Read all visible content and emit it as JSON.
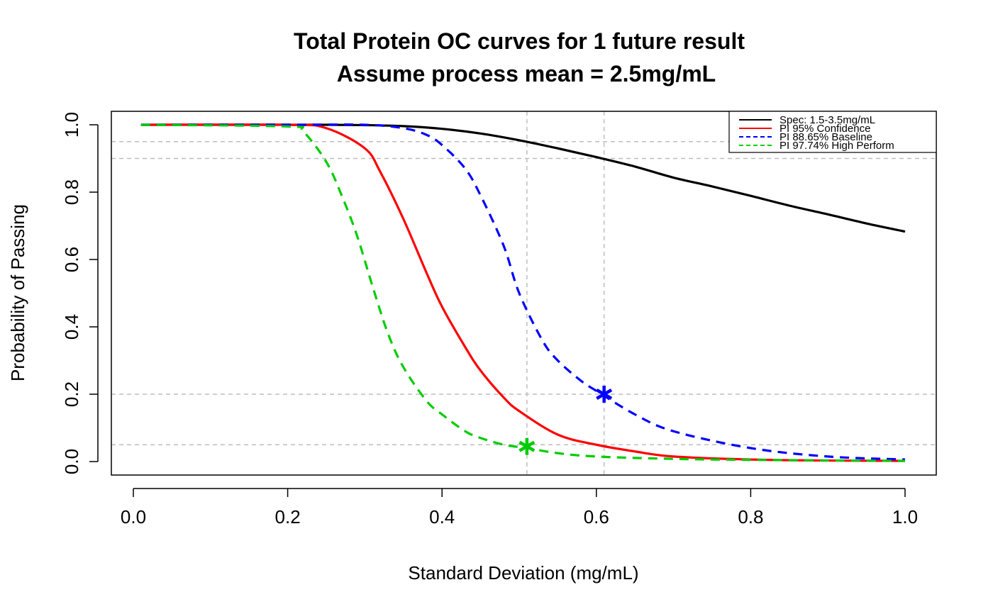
{
  "chart_data": {
    "type": "line",
    "title": "Total Protein OC curves for 1 future result",
    "subtitle": "Assume process mean = 2.5mg/mL",
    "xlabel": "Standard Deviation (mg/mL)",
    "ylabel": "Probability of Passing",
    "xlim": [
      0.0,
      1.0
    ],
    "ylim": [
      0.0,
      1.0
    ],
    "x_ticks": [
      "0.0",
      "0.2",
      "0.4",
      "0.6",
      "0.8",
      "1.0"
    ],
    "y_ticks": [
      "0.0",
      "0.2",
      "0.4",
      "0.6",
      "0.8",
      "1.0"
    ],
    "legend_position": "top-right",
    "series": [
      {
        "name": "Spec: 1.5-3.5mg/mL",
        "color": "#000000",
        "dash": "solid",
        "x": [
          0.01,
          0.2,
          0.25,
          0.3,
          0.35,
          0.4,
          0.45,
          0.5,
          0.55,
          0.6,
          0.65,
          0.7,
          0.75,
          0.8,
          0.85,
          0.9,
          0.95,
          1.0
        ],
        "y": [
          1.0,
          1.0,
          1.0,
          0.999,
          0.996,
          0.988,
          0.974,
          0.954,
          0.93,
          0.904,
          0.876,
          0.843,
          0.817,
          0.789,
          0.76,
          0.734,
          0.707,
          0.683
        ]
      },
      {
        "name": "PI 95% Confidence",
        "color": "#ff0000",
        "dash": "solid",
        "x": [
          0.01,
          0.2,
          0.25,
          0.3,
          0.32,
          0.35,
          0.38,
          0.4,
          0.43,
          0.45,
          0.48,
          0.5,
          0.55,
          0.6,
          0.65,
          0.7,
          0.8,
          0.9,
          1.0
        ],
        "y": [
          1.0,
          1.0,
          0.99,
          0.93,
          0.86,
          0.72,
          0.56,
          0.46,
          0.34,
          0.27,
          0.19,
          0.15,
          0.08,
          0.05,
          0.03,
          0.015,
          0.006,
          0.003,
          0.002
        ]
      },
      {
        "name": "PI 88.65% Baseline",
        "color": "#0000ff",
        "dash": "dashed",
        "x": [
          0.01,
          0.2,
          0.3,
          0.35,
          0.38,
          0.4,
          0.43,
          0.45,
          0.48,
          0.5,
          0.53,
          0.55,
          0.58,
          0.6,
          0.65,
          0.7,
          0.8,
          0.9,
          1.0
        ],
        "y": [
          1.0,
          1.0,
          1.0,
          0.99,
          0.97,
          0.94,
          0.87,
          0.79,
          0.64,
          0.5,
          0.36,
          0.3,
          0.24,
          0.21,
          0.14,
          0.09,
          0.04,
          0.015,
          0.006
        ]
      },
      {
        "name": "PI 97.74% High Perform",
        "color": "#00cc00",
        "dash": "dashed",
        "x": [
          0.01,
          0.2,
          0.22,
          0.25,
          0.27,
          0.29,
          0.31,
          0.33,
          0.35,
          0.38,
          0.4,
          0.43,
          0.45,
          0.48,
          0.51,
          0.55,
          0.6,
          0.7,
          0.8,
          1.0
        ],
        "y": [
          1.0,
          0.995,
          0.98,
          0.89,
          0.79,
          0.67,
          0.52,
          0.38,
          0.28,
          0.18,
          0.14,
          0.09,
          0.07,
          0.05,
          0.04,
          0.025,
          0.015,
          0.008,
          0.005,
          0.002
        ]
      }
    ],
    "reference_lines": {
      "horizontal": [
        0.95,
        0.9,
        0.2,
        0.05
      ],
      "vertical": [
        0.51,
        0.61
      ],
      "color": "#bebebe"
    },
    "markers": [
      {
        "series": "PI 88.65% Baseline",
        "x": 0.61,
        "y": 0.2,
        "symbol": "asterisk",
        "color": "#0000ff"
      },
      {
        "series": "PI 97.74% High Perform",
        "x": 0.51,
        "y": 0.045,
        "symbol": "asterisk",
        "color": "#00cc00"
      }
    ]
  }
}
